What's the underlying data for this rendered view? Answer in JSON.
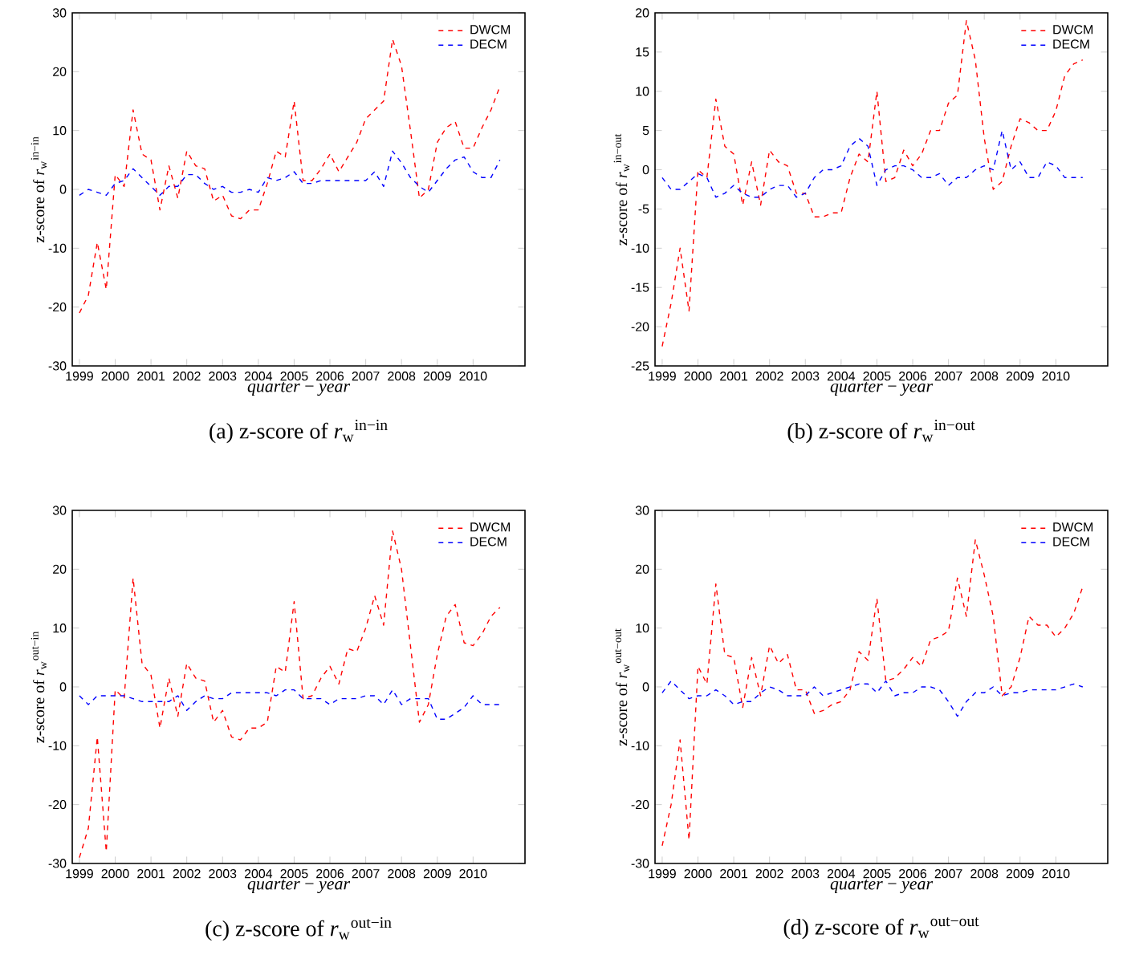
{
  "chart_data": [
    {
      "type": "line",
      "ylabel": "z-score of *r*$_{w}$$^{in−in}$",
      "xlabel": "*quarter* − *year*",
      "annotations": [
        "(a) z-score of *r*$_{w}$$^{in−in}$"
      ],
      "x": [
        1999,
        1999.25,
        1999.5,
        1999.75,
        2000,
        2000.25,
        2000.5,
        2000.75,
        2001,
        2001.25,
        2001.5,
        2001.75,
        2002,
        2002.25,
        2002.5,
        2002.75,
        2003,
        2003.25,
        2003.5,
        2003.75,
        2004,
        2004.25,
        2004.5,
        2004.75,
        2005,
        2005.25,
        2005.5,
        2005.75,
        2006,
        2006.25,
        2006.5,
        2006.75,
        2007,
        2007.25,
        2007.5,
        2007.75,
        2008,
        2008.25,
        2008.5,
        2008.75,
        2009,
        2009.25,
        2009.5,
        2009.75,
        2010,
        2010.25,
        2010.5,
        2010.75
      ],
      "xlim": [
        1998.8,
        2011.45
      ],
      "xticks": [
        1999,
        2000,
        2001,
        2002,
        2003,
        2004,
        2005,
        2006,
        2007,
        2008,
        2009,
        2010
      ],
      "ylim": [
        -30,
        30
      ],
      "yticks": [
        -30,
        -20,
        -10,
        0,
        10,
        20,
        30
      ],
      "legend": "top right",
      "line_style": "dashed",
      "marker": "none",
      "series": [
        {
          "name": "DWCM",
          "color": "#ff0000",
          "values": [
            -21,
            -18,
            -9,
            -17,
            2.5,
            0.5,
            13.5,
            6,
            5,
            -3.5,
            4,
            -1.5,
            6.5,
            4,
            3.5,
            -2,
            -1,
            -4.5,
            -5,
            -3.5,
            -3.5,
            1,
            6.5,
            5.5,
            15,
            1.5,
            1.5,
            3.5,
            6,
            3,
            5.5,
            8,
            12,
            13.5,
            15,
            25.5,
            21,
            10,
            -1.5,
            0,
            8,
            10.5,
            11.5,
            7,
            7,
            10.5,
            13.5,
            17.5
          ]
        },
        {
          "name": "DECM",
          "color": "#0000ff",
          "values": [
            -1,
            0,
            -0.5,
            -1,
            1,
            1.5,
            3.5,
            2,
            0.5,
            -1,
            0.5,
            0.5,
            2.5,
            2.5,
            1,
            0,
            0.5,
            -0.5,
            -0.5,
            0,
            -0.5,
            2,
            1.5,
            2,
            3,
            1,
            1,
            1.5,
            1.5,
            1.5,
            1.5,
            1.5,
            1.5,
            3,
            0.5,
            6.5,
            4.5,
            2,
            0.5,
            -0.5,
            1.5,
            3.5,
            5,
            5.5,
            3,
            2,
            2,
            5
          ]
        }
      ]
    },
    {
      "type": "line",
      "ylabel": "z-score of *r*$_{w}$$^{in−out}$",
      "xlabel": "*quarter* − *year*",
      "annotations": [
        "(b) z-score of *r*$_{w}$$^{in−out}$"
      ],
      "x": [
        1999,
        1999.25,
        1999.5,
        1999.75,
        2000,
        2000.25,
        2000.5,
        2000.75,
        2001,
        2001.25,
        2001.5,
        2001.75,
        2002,
        2002.25,
        2002.5,
        2002.75,
        2003,
        2003.25,
        2003.5,
        2003.75,
        2004,
        2004.25,
        2004.5,
        2004.75,
        2005,
        2005.25,
        2005.5,
        2005.75,
        2006,
        2006.25,
        2006.5,
        2006.75,
        2007,
        2007.25,
        2007.5,
        2007.75,
        2008,
        2008.25,
        2008.5,
        2008.75,
        2009,
        2009.25,
        2009.5,
        2009.75,
        2010,
        2010.25,
        2010.5,
        2010.75
      ],
      "xlim": [
        1998.8,
        2011.45
      ],
      "xticks": [
        1999,
        2000,
        2001,
        2002,
        2003,
        2004,
        2005,
        2006,
        2007,
        2008,
        2009,
        2010
      ],
      "ylim": [
        -25,
        20
      ],
      "yticks": [
        -25,
        -20,
        -15,
        -10,
        -5,
        0,
        5,
        10,
        15,
        20
      ],
      "legend": "top right",
      "line_style": "dashed",
      "marker": "none",
      "series": [
        {
          "name": "DWCM",
          "color": "#ff0000",
          "values": [
            -22.5,
            -17,
            -10,
            -18,
            0,
            -1,
            9,
            3,
            2,
            -4.5,
            1,
            -4.5,
            2.5,
            1,
            0.5,
            -3,
            -3,
            -6,
            -6,
            -5.5,
            -5.5,
            -1,
            2,
            1,
            10,
            -1.5,
            -1,
            2.5,
            0.5,
            2,
            5,
            5,
            8.5,
            9.5,
            19,
            14,
            4,
            -2.5,
            -1.5,
            3,
            6.5,
            6,
            5,
            5,
            7.5,
            12,
            13.5,
            14
          ]
        },
        {
          "name": "DECM",
          "color": "#0000ff",
          "values": [
            -1,
            -2.5,
            -2.5,
            -1.5,
            -0.5,
            -1,
            -3.5,
            -3,
            -2,
            -3,
            -3.5,
            -3.5,
            -2.5,
            -2,
            -2,
            -3.5,
            -3,
            -1,
            0,
            0,
            0.5,
            3,
            4,
            3,
            -2,
            0,
            0.5,
            0.5,
            0,
            -1,
            -1,
            -0.5,
            -2,
            -1,
            -1,
            0,
            0.5,
            0,
            5,
            0,
            1,
            -1,
            -1,
            1,
            0.5,
            -1,
            -1,
            -1
          ]
        }
      ]
    },
    {
      "type": "line",
      "ylabel": "z-score of *r*$_{w}$$^{out−in}$",
      "xlabel": "*quarter* − *year*",
      "annotations": [
        "(c) z-score of *r*$_{w}$$^{out−in}$"
      ],
      "x": [
        1999,
        1999.25,
        1999.5,
        1999.75,
        2000,
        2000.25,
        2000.5,
        2000.75,
        2001,
        2001.25,
        2001.5,
        2001.75,
        2002,
        2002.25,
        2002.5,
        2002.75,
        2003,
        2003.25,
        2003.5,
        2003.75,
        2004,
        2004.25,
        2004.5,
        2004.75,
        2005,
        2005.25,
        2005.5,
        2005.75,
        2006,
        2006.25,
        2006.5,
        2006.75,
        2007,
        2007.25,
        2007.5,
        2007.75,
        2008,
        2008.25,
        2008.5,
        2008.75,
        2009,
        2009.25,
        2009.5,
        2009.75,
        2010,
        2010.25,
        2010.5,
        2010.75
      ],
      "xlim": [
        1998.8,
        2011.45
      ],
      "xticks": [
        1999,
        2000,
        2001,
        2002,
        2003,
        2004,
        2005,
        2006,
        2007,
        2008,
        2009,
        2010
      ],
      "ylim": [
        -30,
        30
      ],
      "yticks": [
        -30,
        -20,
        -10,
        0,
        10,
        20,
        30
      ],
      "legend": "top right",
      "line_style": "dashed",
      "marker": "none",
      "series": [
        {
          "name": "DWCM",
          "color": "#ff0000",
          "values": [
            -29,
            -24,
            -8.5,
            -28,
            -0.5,
            -2,
            18.5,
            4,
            2,
            -7,
            1.5,
            -5,
            4,
            1.5,
            1,
            -6,
            -4,
            -8.5,
            -9,
            -7,
            -7,
            -6,
            3.5,
            2.5,
            14.5,
            -2,
            -1.5,
            1.5,
            3.5,
            0.5,
            6.5,
            6,
            10,
            15.5,
            10.5,
            26.5,
            20,
            7,
            -6,
            -3,
            5.5,
            12,
            14,
            7.5,
            7,
            9,
            12,
            13.5
          ]
        },
        {
          "name": "DECM",
          "color": "#0000ff",
          "values": [
            -1.5,
            -3,
            -1.5,
            -1.5,
            -1.5,
            -1.5,
            -2,
            -2.5,
            -2.5,
            -2.5,
            -2.5,
            -1.5,
            -4,
            -2.5,
            -1.5,
            -2,
            -2,
            -1,
            -1,
            -1,
            -1,
            -1,
            -1.5,
            -0.5,
            -0.5,
            -2,
            -2,
            -2,
            -3,
            -2,
            -2,
            -2,
            -1.5,
            -1.5,
            -3,
            -0.5,
            -3,
            -2,
            -2,
            -2,
            -5.5,
            -5.5,
            -4.5,
            -3.5,
            -1.5,
            -3,
            -3,
            -3
          ]
        }
      ]
    },
    {
      "type": "line",
      "ylabel": "z-score of *r*$_{w}$$^{out−out}$",
      "xlabel": "*quarter* − *year*",
      "annotations": [
        "(d) z-score of *r*$_{w}$$^{out−out}$"
      ],
      "x": [
        1999,
        1999.25,
        1999.5,
        1999.75,
        2000,
        2000.25,
        2000.5,
        2000.75,
        2001,
        2001.25,
        2001.5,
        2001.75,
        2002,
        2002.25,
        2002.5,
        2002.75,
        2003,
        2003.25,
        2003.5,
        2003.75,
        2004,
        2004.25,
        2004.5,
        2004.75,
        2005,
        2005.25,
        2005.5,
        2005.75,
        2006,
        2006.25,
        2006.5,
        2006.75,
        2007,
        2007.25,
        2007.5,
        2007.75,
        2008,
        2008.25,
        2008.5,
        2008.75,
        2009,
        2009.25,
        2009.5,
        2009.75,
        2010,
        2010.25,
        2010.5,
        2010.75
      ],
      "xlim": [
        1998.8,
        2011.45
      ],
      "xticks": [
        1999,
        2000,
        2001,
        2002,
        2003,
        2004,
        2005,
        2006,
        2007,
        2008,
        2009,
        2010
      ],
      "ylim": [
        -30,
        30
      ],
      "yticks": [
        -30,
        -20,
        -10,
        0,
        10,
        20,
        30
      ],
      "legend": "top right",
      "line_style": "dashed",
      "marker": "none",
      "series": [
        {
          "name": "DWCM",
          "color": "#ff0000",
          "values": [
            -27,
            -20,
            -9,
            -26,
            3.5,
            0.5,
            17.5,
            5.5,
            5,
            -3.5,
            5,
            -1.5,
            7,
            4,
            5.5,
            -0.5,
            -0.5,
            -4.5,
            -4,
            -3,
            -2.5,
            -0.5,
            6,
            4.5,
            15,
            1,
            1.5,
            3,
            5,
            3.5,
            8,
            8.5,
            9.5,
            18.5,
            12,
            25,
            19,
            12,
            -1.5,
            0,
            5,
            12,
            10.5,
            10.5,
            8.5,
            10,
            12.5,
            17
          ]
        },
        {
          "name": "DECM",
          "color": "#0000ff",
          "values": [
            -1,
            1,
            -0.5,
            -2,
            -1.5,
            -1.5,
            -0.5,
            -1.5,
            -3,
            -2.5,
            -2.5,
            -1,
            0,
            -0.5,
            -1.5,
            -1.5,
            -1.5,
            0,
            -1.5,
            -1,
            -0.5,
            0,
            0.5,
            0.5,
            -1,
            1,
            -1.5,
            -1,
            -1,
            0,
            0,
            -0.5,
            -2.5,
            -5,
            -2.5,
            -1,
            -1,
            0,
            -1.5,
            -1,
            -1,
            -0.5,
            -0.5,
            -0.5,
            -0.5,
            0,
            0.5,
            0
          ]
        }
      ]
    }
  ]
}
